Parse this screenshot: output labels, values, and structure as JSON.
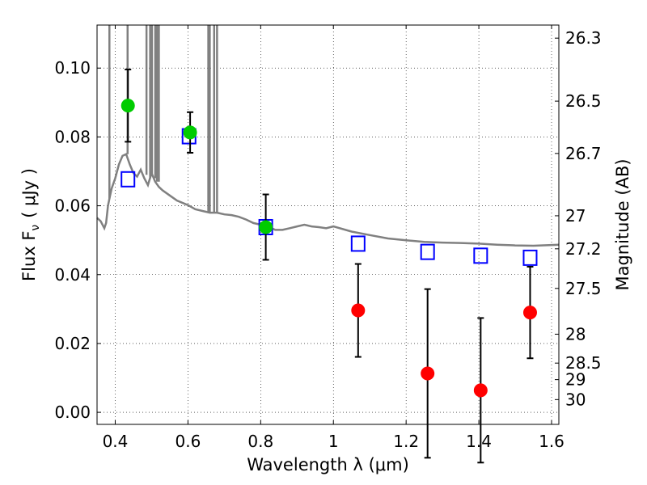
{
  "chart_data": {
    "type": "scatter",
    "xlabel": "Wavelength  λ (μm)",
    "ylabel": "Flux  F",
    "ylabel_sub": "ν",
    "ylabel_unit": "( μJy )",
    "y2label": "Magnitude (AB)",
    "xlim": [
      0.35,
      1.62
    ],
    "ylim": [
      -0.0035,
      0.1125
    ],
    "grid": true,
    "x_ticks": [
      0.4,
      0.6,
      0.8,
      1.0,
      1.2,
      1.4,
      1.6
    ],
    "x_tick_labels": [
      "0.4",
      "0.6",
      "0.8",
      "1",
      "1.2",
      "1.4",
      "1.6"
    ],
    "y_ticks": [
      0.0,
      0.02,
      0.04,
      0.06,
      0.08,
      0.1
    ],
    "y_tick_labels": [
      "0.00",
      "0.02",
      "0.04",
      "0.06",
      "0.08",
      "0.10"
    ],
    "y2_ticks": [
      {
        "label": "26.3",
        "flux": 0.1087
      },
      {
        "label": "26.5",
        "flux": 0.0904
      },
      {
        "label": "26.7",
        "flux": 0.0752
      },
      {
        "label": "27",
        "flux": 0.0571
      },
      {
        "label": "27.2",
        "flux": 0.0475
      },
      {
        "label": "27.5",
        "flux": 0.036
      },
      {
        "label": "28",
        "flux": 0.0227
      },
      {
        "label": "28.5",
        "flux": 0.0143
      },
      {
        "label": "29",
        "flux": 0.0095
      },
      {
        "label": "30",
        "flux": 0.0037
      }
    ],
    "series": [
      {
        "kind": "line",
        "color": "#808080",
        "x": [
          0.35,
          0.36,
          0.37,
          0.375,
          0.38,
          0.385,
          0.39,
          0.4,
          0.41,
          0.42,
          0.43,
          0.44,
          0.45,
          0.46,
          0.47,
          0.48,
          0.49,
          0.5,
          0.51,
          0.52,
          0.53,
          0.55,
          0.57,
          0.6,
          0.62,
          0.64,
          0.66,
          0.68,
          0.7,
          0.72,
          0.74,
          0.76,
          0.78,
          0.8,
          0.82,
          0.84,
          0.86,
          0.88,
          0.9,
          0.92,
          0.94,
          0.96,
          0.98,
          1.0,
          1.05,
          1.1,
          1.15,
          1.2,
          1.25,
          1.3,
          1.35,
          1.4,
          1.45,
          1.5,
          1.55,
          1.6,
          1.62
        ],
        "y": [
          0.0565,
          0.0555,
          0.0535,
          0.055,
          0.06,
          0.0625,
          0.065,
          0.068,
          0.072,
          0.0745,
          0.075,
          0.072,
          0.0695,
          0.0685,
          0.0705,
          0.068,
          0.066,
          0.0695,
          0.067,
          0.0655,
          0.0645,
          0.063,
          0.0615,
          0.0602,
          0.059,
          0.0585,
          0.058,
          0.058,
          0.0575,
          0.0573,
          0.0568,
          0.056,
          0.055,
          0.0545,
          0.054,
          0.053,
          0.053,
          0.0535,
          0.054,
          0.0545,
          0.054,
          0.0538,
          0.0535,
          0.054,
          0.0525,
          0.0515,
          0.0505,
          0.05,
          0.0495,
          0.0493,
          0.0492,
          0.049,
          0.0487,
          0.0485,
          0.0484,
          0.0486,
          0.0487
        ]
      },
      {
        "kind": "spikes",
        "color": "#808080",
        "note": "emission lines",
        "x": [
          0.384,
          0.434,
          0.486,
          0.496,
          0.501,
          0.51,
          0.515,
          0.52,
          0.656,
          0.66,
          0.672,
          0.68
        ],
        "base": [
          0.062,
          0.075,
          0.069,
          0.068,
          0.069,
          0.068,
          0.067,
          0.067,
          0.058,
          0.058,
          0.058,
          0.058
        ]
      },
      {
        "kind": "points",
        "marker": "square",
        "color": "#0000ff",
        "x": [
          0.435,
          0.603,
          0.814,
          1.068,
          1.259,
          1.405,
          1.541
        ],
        "y": [
          0.0677,
          0.0802,
          0.0538,
          0.049,
          0.0466,
          0.0455,
          0.0449
        ]
      },
      {
        "kind": "points",
        "marker": "circle",
        "color": "#00cc00",
        "x": [
          0.435,
          0.606,
          0.814
        ],
        "y": [
          0.0891,
          0.0813,
          0.0538
        ],
        "yerr": [
          0.0105,
          0.0059,
          0.0095
        ]
      },
      {
        "kind": "points",
        "marker": "circle",
        "color": "#ff0000",
        "x": [
          1.068,
          1.259,
          1.405,
          1.541
        ],
        "y": [
          0.0296,
          0.0113,
          0.0064,
          0.029
        ],
        "yerr": [
          0.0135,
          0.0245,
          0.021,
          0.0133
        ]
      }
    ]
  }
}
